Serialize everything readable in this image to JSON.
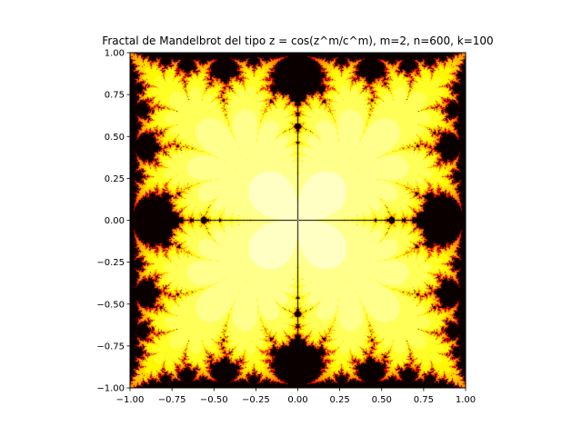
{
  "chart_data": {
    "type": "heatmap",
    "title": "Fractal de Mandelbrot del tipo z = cos(z^m/c^m), m=2, n=600, k=100",
    "xlabel": "",
    "ylabel": "",
    "xlim": [
      -1.0,
      1.0
    ],
    "ylim": [
      -1.0,
      1.0
    ],
    "x_ticks": [
      "−1.00",
      "−0.75",
      "−0.50",
      "−0.25",
      "0.00",
      "0.25",
      "0.50",
      "0.75",
      "1.00"
    ],
    "y_ticks": [
      "1.00",
      "0.75",
      "0.50",
      "0.25",
      "0.00",
      "−0.25",
      "−0.50",
      "−0.75",
      "−1.00"
    ],
    "x_tick_values": [
      -1.0,
      -0.75,
      -0.5,
      -0.25,
      0.0,
      0.25,
      0.5,
      0.75,
      1.0
    ],
    "y_tick_values": [
      1.0,
      0.75,
      0.5,
      0.25,
      0.0,
      -0.25,
      -0.5,
      -0.75,
      -1.0
    ],
    "formula": "z = cos(z^m / c^m)",
    "m": 2,
    "resolution_n": 600,
    "max_iterations_k": 100,
    "colormap": "hot",
    "grid": false,
    "legend": "none",
    "colors": {
      "low": "#0d0000",
      "mid": "#e60000",
      "high": "#ffff00",
      "top": "#ffffff"
    }
  }
}
